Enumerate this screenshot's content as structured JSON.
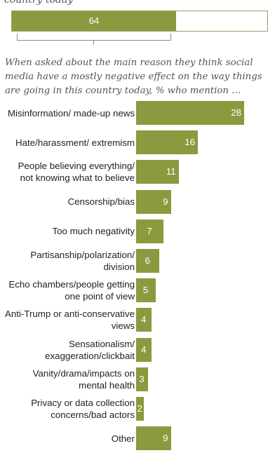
{
  "header": {
    "cut_text": "country today",
    "summary_value": "64",
    "summary_percent": 64,
    "question": "When asked about the main reason they think social media have a mostly negative effect on the way things are going in this country today, % who mention …"
  },
  "colors": {
    "bar": "#8a9a3f",
    "bar_label": "#ffffff"
  },
  "chart_data": {
    "type": "bar",
    "orientation": "horizontal",
    "title": "",
    "xlabel": "",
    "ylabel": "",
    "categories": [
      "Misinformation/ made-up news",
      "Hate/harassment/ extremism",
      "People believing everything/ not knowing what to believe",
      "Censorship/bias",
      "Too much negativity",
      "Partisanship/polarization/ division",
      "Echo chambers/people getting one point of view",
      "Anti-Trump or anti-conservative views",
      "Sensationalism/ exaggeration/clickbait",
      "Vanity/drama/impacts on mental health",
      "Privacy or data collection concerns/bad actors",
      "Other"
    ],
    "values": [
      28,
      16,
      11,
      9,
      7,
      6,
      5,
      4,
      4,
      3,
      2,
      9
    ],
    "labels": [
      "28",
      "16",
      "11",
      "9",
      "7",
      "6",
      "5",
      "4",
      "4",
      "3",
      "2",
      "9"
    ]
  }
}
